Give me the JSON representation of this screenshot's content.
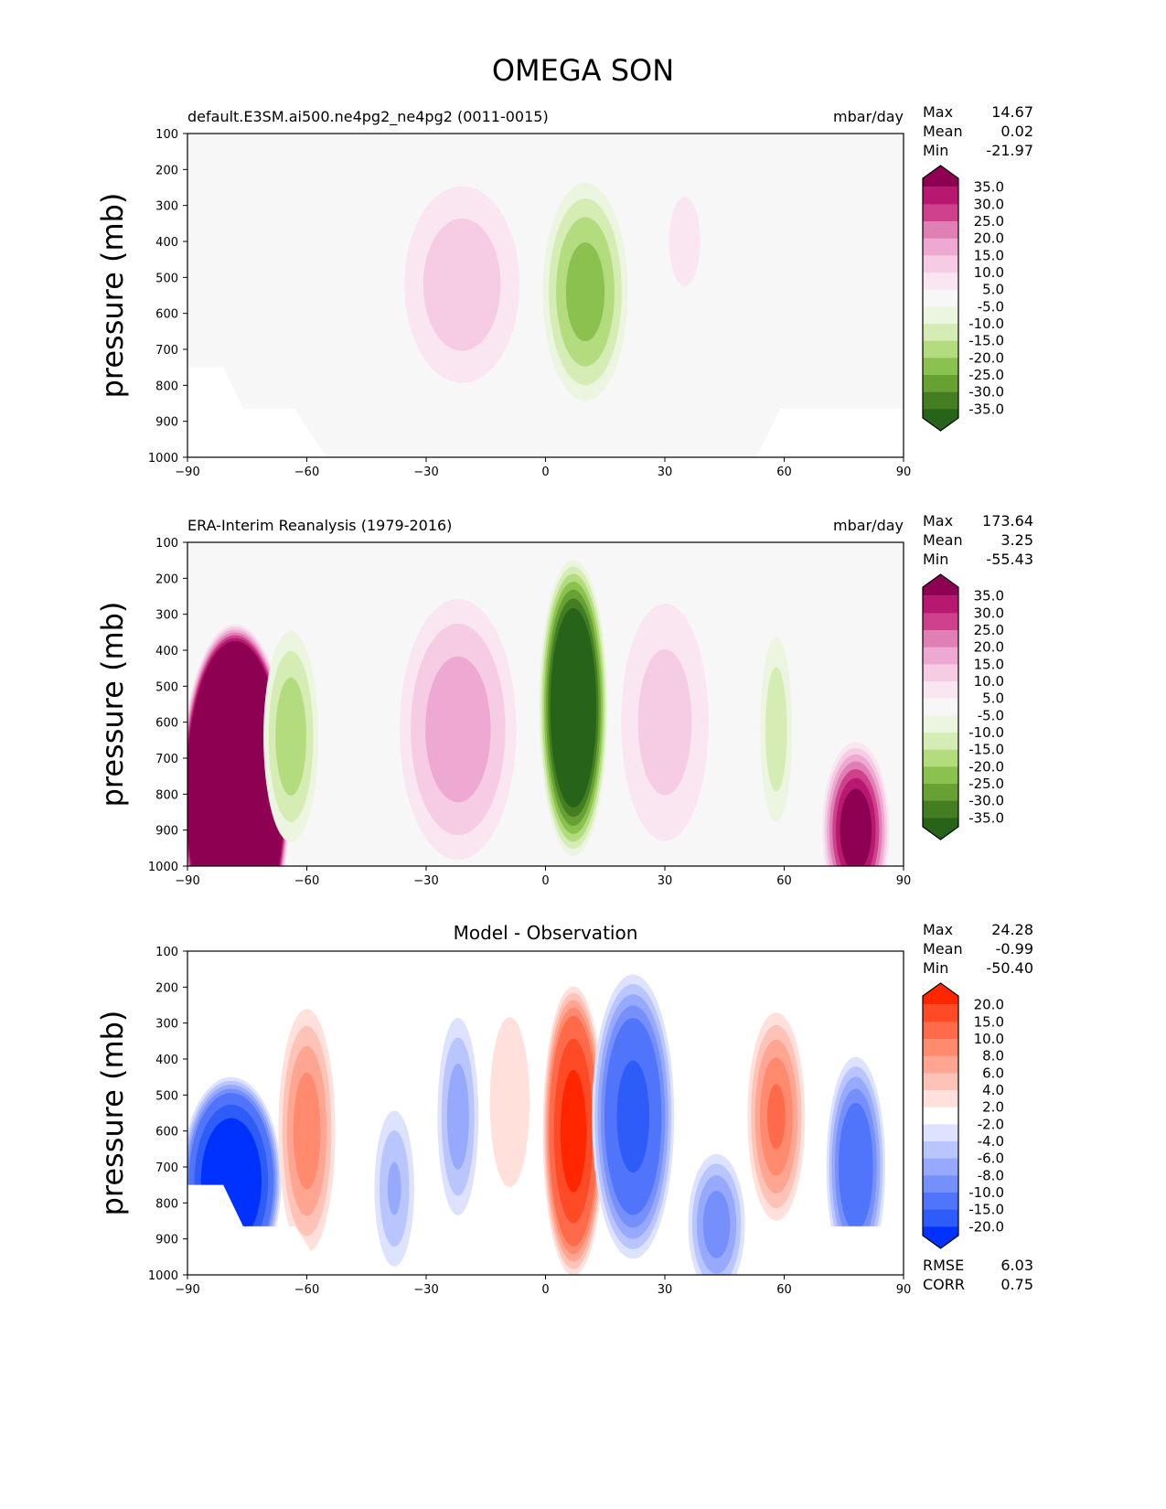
{
  "title": "OMEGA SON",
  "chart_data": [
    {
      "type": "heatmap",
      "subtype": "filled-contour",
      "title_left": "default.E3SM.ai500.ne4pg2_ne4pg2 (0011-0015)",
      "title_right": "mbar/day",
      "title_center": "",
      "ylabel": "pressure (mb)",
      "xlim": [
        -90,
        90
      ],
      "ylim": [
        1000,
        100
      ],
      "xticks": [
        "−90",
        "−60",
        "−30",
        "0",
        "30",
        "60",
        "90"
      ],
      "yticks": [
        "100",
        "200",
        "300",
        "400",
        "500",
        "600",
        "700",
        "800",
        "900",
        "1000"
      ],
      "stats": [
        {
          "label": "Max",
          "value": "14.67"
        },
        {
          "label": "Mean",
          "value": "0.02"
        },
        {
          "label": "Min",
          "value": "-21.97"
        }
      ],
      "colorbar": {
        "levels": [
          "35.0",
          "30.0",
          "25.0",
          "20.0",
          "15.0",
          "10.0",
          "5.0",
          "-5.0",
          "-10.0",
          "-15.0",
          "-20.0",
          "-25.0",
          "-30.0",
          "-35.0"
        ],
        "level_values": [
          35,
          30,
          25,
          20,
          15,
          10,
          5,
          -5,
          -10,
          -15,
          -20,
          -25,
          -30,
          -35
        ],
        "colors": [
          "#8e0152",
          "#b8186f",
          "#cf408d",
          "#e07fb4",
          "#eda9d1",
          "#f6cbe4",
          "#fae6f1",
          "#f7f7f7",
          "#ebf5df",
          "#d5ecb4",
          "#b2dc7e",
          "#8bc24f",
          "#68a133",
          "#457e22",
          "#276419"
        ]
      },
      "background": "#f7f7f7",
      "features": [
        {
          "lat": -21,
          "p": 520,
          "dlat": 18,
          "dp": 340,
          "value": 13
        },
        {
          "lat": 10,
          "p": 540,
          "dlat": 12,
          "dp": 340,
          "value": -22
        },
        {
          "lat": 35,
          "p": 400,
          "dlat": 6,
          "dp": 190,
          "value": 8
        }
      ],
      "footer": []
    },
    {
      "type": "heatmap",
      "subtype": "filled-contour",
      "title_left": "ERA-Interim Reanalysis (1979-2016)",
      "title_right": "mbar/day",
      "title_center": "",
      "ylabel": "pressure (mb)",
      "xlim": [
        -90,
        90
      ],
      "ylim": [
        1000,
        100
      ],
      "xticks": [
        "−90",
        "−60",
        "−30",
        "0",
        "30",
        "60",
        "90"
      ],
      "yticks": [
        "100",
        "200",
        "300",
        "400",
        "500",
        "600",
        "700",
        "800",
        "900",
        "1000"
      ],
      "stats": [
        {
          "label": "Max",
          "value": "173.64"
        },
        {
          "label": "Mean",
          "value": "3.25"
        },
        {
          "label": "Min",
          "value": "-55.43"
        }
      ],
      "colorbar": {
        "levels": [
          "35.0",
          "30.0",
          "25.0",
          "20.0",
          "15.0",
          "10.0",
          "5.0",
          "-5.0",
          "-10.0",
          "-15.0",
          "-20.0",
          "-25.0",
          "-30.0",
          "-35.0"
        ],
        "level_values": [
          35,
          30,
          25,
          20,
          15,
          10,
          5,
          -5,
          -10,
          -15,
          -20,
          -25,
          -30,
          -35
        ],
        "colors": [
          "#8e0152",
          "#b8186f",
          "#cf408d",
          "#e07fb4",
          "#eda9d1",
          "#f6cbe4",
          "#fae6f1",
          "#f7f7f7",
          "#ebf5df",
          "#d5ecb4",
          "#b2dc7e",
          "#8bc24f",
          "#68a133",
          "#457e22",
          "#276419"
        ]
      },
      "background": "#f7f7f7",
      "features": [
        {
          "lat": -78,
          "p": 800,
          "dlat": 14,
          "dp": 480,
          "value": 150
        },
        {
          "lat": -64,
          "p": 640,
          "dlat": 8,
          "dp": 340,
          "value": -18
        },
        {
          "lat": -22,
          "p": 620,
          "dlat": 17,
          "dp": 420,
          "value": 18
        },
        {
          "lat": 7,
          "p": 560,
          "dlat": 9,
          "dp": 430,
          "value": -55
        },
        {
          "lat": 30,
          "p": 600,
          "dlat": 14,
          "dp": 420,
          "value": 12
        },
        {
          "lat": 58,
          "p": 620,
          "dlat": 5,
          "dp": 320,
          "value": -13
        },
        {
          "lat": 78,
          "p": 900,
          "dlat": 9,
          "dp": 260,
          "value": 40
        }
      ],
      "footer": []
    },
    {
      "type": "heatmap",
      "subtype": "filled-contour",
      "title_left": "",
      "title_right": "",
      "title_center": "Model - Observation",
      "ylabel": "pressure (mb)",
      "xlim": [
        -90,
        90
      ],
      "ylim": [
        1000,
        100
      ],
      "xticks": [
        "−90",
        "−60",
        "−30",
        "0",
        "30",
        "60",
        "90"
      ],
      "yticks": [
        "100",
        "200",
        "300",
        "400",
        "500",
        "600",
        "700",
        "800",
        "900",
        "1000"
      ],
      "stats": [
        {
          "label": "Max",
          "value": "24.28"
        },
        {
          "label": "Mean",
          "value": "-0.99"
        },
        {
          "label": "Min",
          "value": "-50.40"
        }
      ],
      "colorbar": {
        "levels": [
          "20.0",
          "15.0",
          "10.0",
          "8.0",
          "6.0",
          "4.0",
          "2.0",
          "-2.0",
          "-4.0",
          "-6.0",
          "-8.0",
          "-10.0",
          "-15.0",
          "-20.0"
        ],
        "level_values": [
          20,
          15,
          10,
          8,
          6,
          4,
          2,
          -2,
          -4,
          -6,
          -8,
          -10,
          -15,
          -20
        ],
        "colors": [
          "#ff2600",
          "#ff4a26",
          "#ff6a4a",
          "#ff8a6e",
          "#ffa592",
          "#ffc2b6",
          "#ffe0da",
          "#ffffff",
          "#dde3fe",
          "#b9c6fe",
          "#97a9fd",
          "#7590fb",
          "#5075fa",
          "#2e5cf9",
          "#0032ff"
        ]
      },
      "background": "#ffffff",
      "features": [
        {
          "lat": -79,
          "p": 740,
          "dlat": 13,
          "dp": 300,
          "value": -28
        },
        {
          "lat": -60,
          "p": 600,
          "dlat": 8,
          "dp": 380,
          "value": 9
        },
        {
          "lat": -38,
          "p": 760,
          "dlat": 6,
          "dp": 260,
          "value": -6
        },
        {
          "lat": -22,
          "p": 560,
          "dlat": 6,
          "dp": 320,
          "value": -7
        },
        {
          "lat": -9,
          "p": 520,
          "dlat": 8,
          "dp": 380,
          "value": 3
        },
        {
          "lat": 7,
          "p": 600,
          "dlat": 8,
          "dp": 420,
          "value": 22
        },
        {
          "lat": 22,
          "p": 560,
          "dlat": 11,
          "dp": 420,
          "value": -16
        },
        {
          "lat": 43,
          "p": 860,
          "dlat": 8,
          "dp": 220,
          "value": -9
        },
        {
          "lat": 58,
          "p": 560,
          "dlat": 8,
          "dp": 320,
          "value": 10
        },
        {
          "lat": 78,
          "p": 700,
          "dlat": 8,
          "dp": 330,
          "value": -13
        }
      ],
      "footer": [
        {
          "label": "RMSE",
          "value": "6.03"
        },
        {
          "label": "CORR",
          "value": "0.75"
        }
      ]
    }
  ]
}
